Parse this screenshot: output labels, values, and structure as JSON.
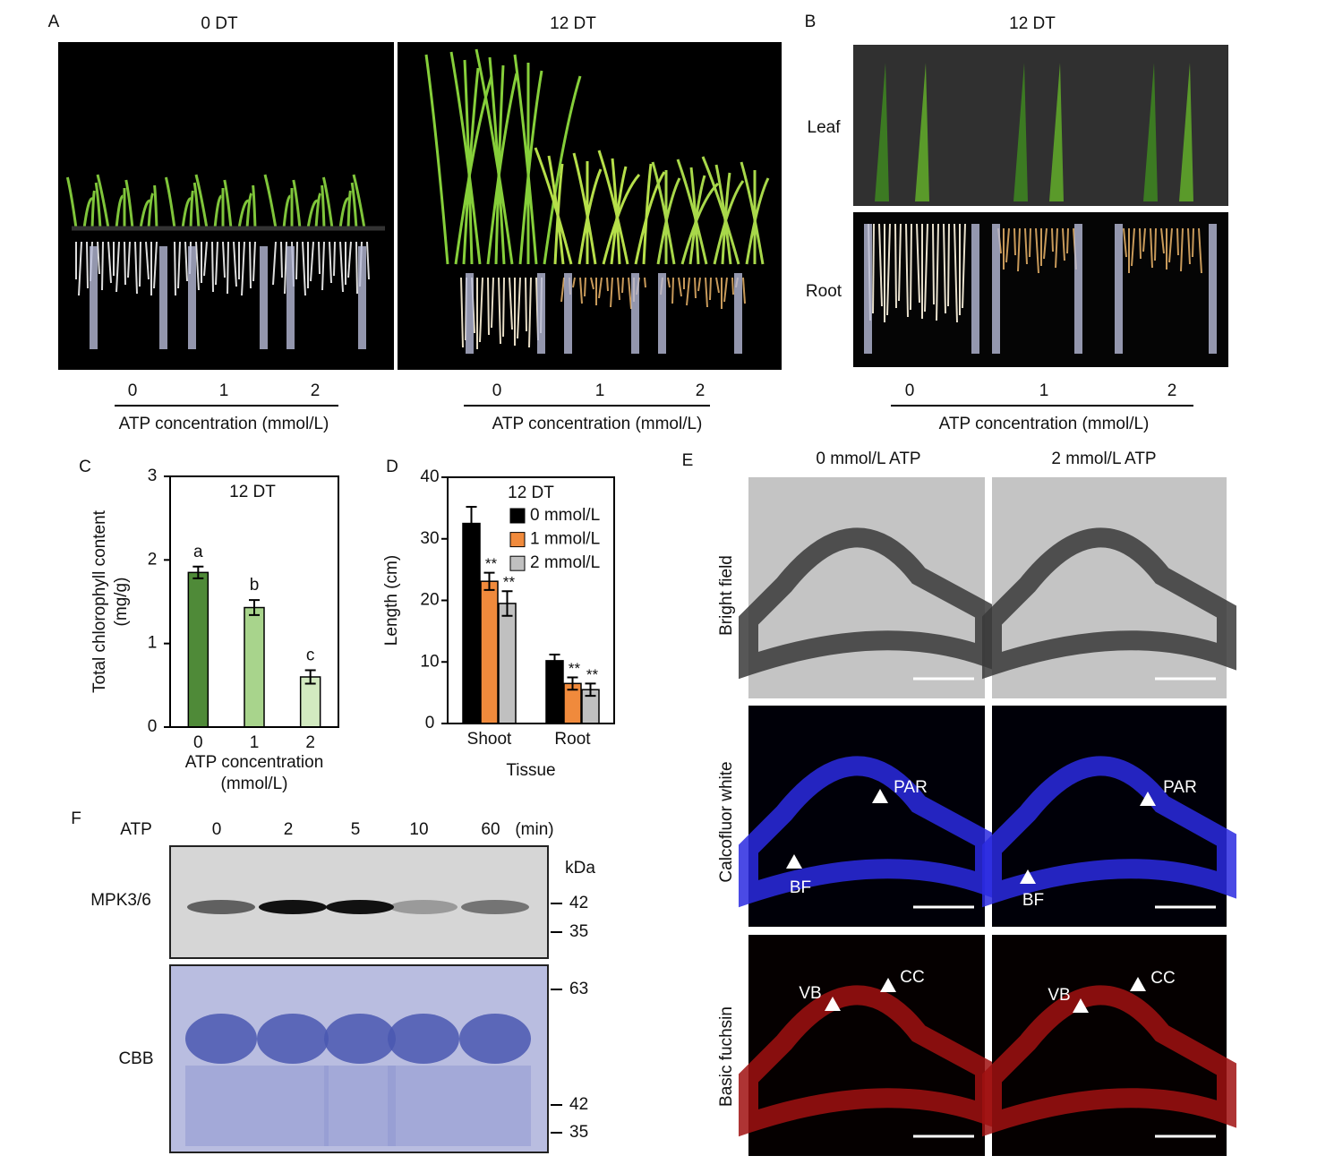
{
  "panel_a": {
    "label": "A",
    "conditions": [
      {
        "title": "0 DT",
        "doses": [
          0,
          1,
          2
        ],
        "axis_label": "ATP concentration (mmol/L)"
      },
      {
        "title": "12 DT",
        "doses": [
          0,
          1,
          2
        ],
        "axis_label": "ATP concentration (mmol/L)"
      }
    ]
  },
  "panel_b": {
    "label": "B",
    "title": "12 DT",
    "rows": [
      "Leaf",
      "Root"
    ],
    "doses": [
      0,
      1,
      2
    ],
    "axis_label": "ATP concentration (mmol/L)"
  },
  "chart_data": [
    {
      "type": "bar",
      "label": "C",
      "title": "12 DT",
      "categories": [
        "0",
        "1",
        "2"
      ],
      "values": [
        1.85,
        1.43,
        0.6
      ],
      "errors": [
        0.07,
        0.09,
        0.08
      ],
      "significance": [
        "a",
        "b",
        "c"
      ],
      "colors": [
        "#4f8a38",
        "#a8d48c",
        "#d2eac0"
      ],
      "y_label": [
        "Total chlorophyll content",
        "(mg/g)"
      ],
      "x_label": [
        "ATP concentration",
        "(mmol/L)"
      ],
      "ylim": [
        0,
        3
      ],
      "yticks": [
        0,
        1,
        2,
        3
      ]
    },
    {
      "type": "bar",
      "label": "D",
      "title": "12 DT",
      "categories": [
        "Shoot",
        "Root"
      ],
      "series": [
        {
          "name": "0 mmol/L",
          "color": "#000000",
          "values": [
            32.5,
            10.2
          ],
          "errors": [
            2.7,
            1.0
          ]
        },
        {
          "name": "1 mmol/L",
          "color": "#f08a3c",
          "values": [
            23.1,
            6.5
          ],
          "errors": [
            1.4,
            1.0
          ],
          "significance": [
            "**",
            "**"
          ]
        },
        {
          "name": "2 mmol/L",
          "color": "#c0c0c0",
          "values": [
            19.5,
            5.5
          ],
          "errors": [
            2.0,
            1.0
          ],
          "significance": [
            "**",
            "**"
          ]
        }
      ],
      "y_label": "Length (cm)",
      "x_label": "Tissue",
      "ylim": [
        0,
        40
      ],
      "yticks": [
        0,
        10,
        20,
        30,
        40
      ]
    }
  ],
  "panel_e": {
    "label": "E",
    "columns": [
      "0 mmol/L  ATP",
      "2 mmol/L  ATP"
    ],
    "rows": [
      "Bright field",
      "Calcofluor white",
      "Basic fuchsin"
    ],
    "annotations": [
      "PAR",
      "BF",
      "PAR",
      "BF",
      "VB",
      "CC",
      "VB",
      "CC"
    ]
  },
  "panel_f": {
    "label": "F",
    "treatment": "ATP",
    "times": [
      0,
      2,
      5,
      10,
      60
    ],
    "time_unit": "(min)",
    "mass_unit": "kDa",
    "blots": [
      {
        "name": "MPK3/6",
        "markers": [
          42,
          35
        ]
      },
      {
        "name": "CBB",
        "markers": [
          63,
          42,
          35
        ]
      }
    ]
  }
}
